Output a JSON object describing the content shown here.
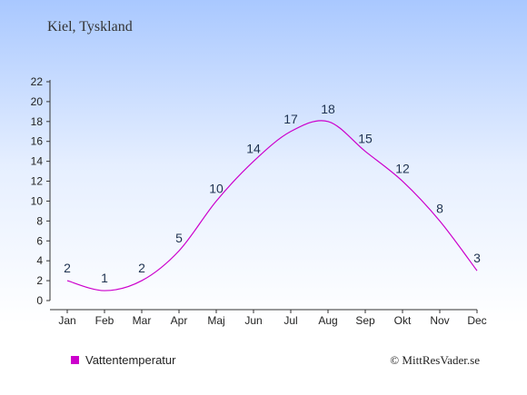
{
  "page": {
    "title": "Kiel, Tyskland",
    "credit": "© MittResVader.se"
  },
  "chart_data": {
    "type": "line",
    "title": "Kiel, Tyskland",
    "categories": [
      "Jan",
      "Feb",
      "Mar",
      "Apr",
      "Maj",
      "Jun",
      "Jul",
      "Aug",
      "Sep",
      "Okt",
      "Nov",
      "Dec"
    ],
    "series": [
      {
        "name": "Vattentemperatur",
        "color": "#cc00cc",
        "values": [
          2,
          1,
          2,
          5,
          10,
          14,
          17,
          18,
          15,
          12,
          8,
          3
        ]
      }
    ],
    "data_labels": [
      "2",
      "1",
      "2",
      "5",
      "10",
      "14",
      "17",
      "18",
      "15",
      "12",
      "8",
      "3"
    ],
    "y_ticks": [
      0,
      2,
      4,
      6,
      8,
      10,
      12,
      14,
      16,
      18,
      20,
      22
    ],
    "ylim": [
      0,
      22
    ],
    "grid": false,
    "legend_position": "bottom-left"
  }
}
